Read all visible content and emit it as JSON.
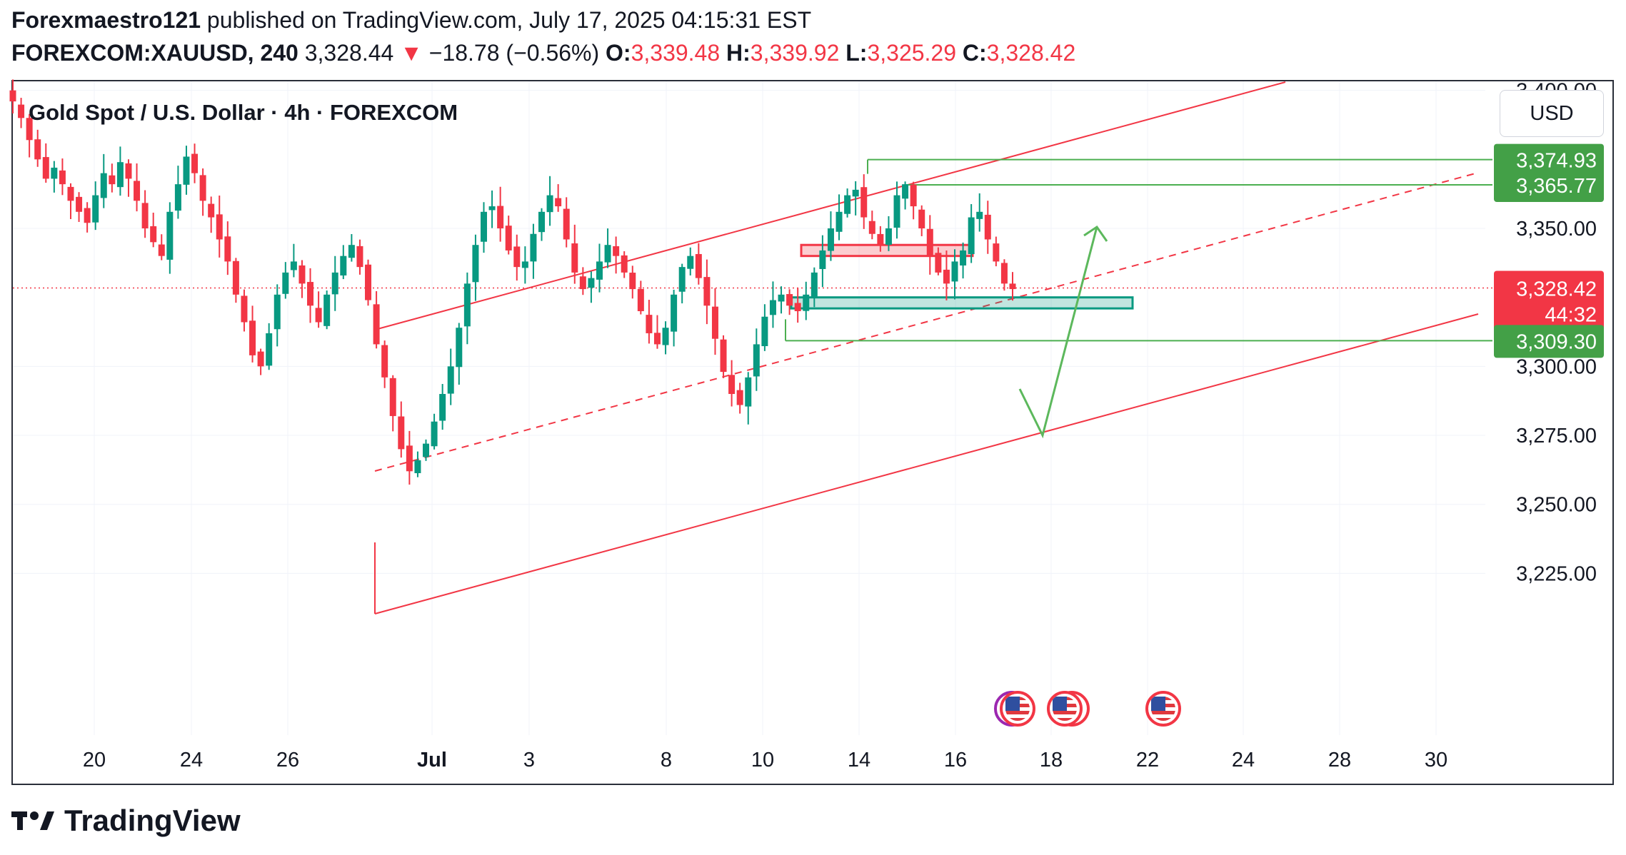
{
  "header": {
    "author": "Forexmaestro121",
    "published_text": "published on TradingView.com, July 17, 2025 04:15:31 EST",
    "symbol": "FOREXCOM:XAUUSD, 240",
    "last": "3,328.44",
    "change_arrow": "▼",
    "change": "−18.78 (−0.56%)",
    "o_label": "O:",
    "o_value": "3,339.48",
    "h_label": "H:",
    "h_value": "3,339.92",
    "l_label": "L:",
    "l_value": "3,325.29",
    "c_label": "C:",
    "c_value": "3,328.42"
  },
  "chart_title": "Gold Spot / U.S. Dollar · 4h · FOREXCOM",
  "currency_button": "USD",
  "footer_brand": "TradingView",
  "colors": {
    "up": "#089981",
    "down": "#f23645",
    "channel": "#f23645",
    "levels": "#4caf50",
    "text": "#131722",
    "grid": "#f0f3fa"
  },
  "chart_data": {
    "type": "candlestick",
    "title": "Gold Spot / U.S. Dollar · 4h · FOREXCOM",
    "y_ticks": [
      "3,400.00",
      "3,350.00",
      "3,300.00",
      "3,275.00",
      "3,250.00",
      "3,225.00"
    ],
    "y_tick_values": [
      3400,
      3350,
      3300,
      3275,
      3250,
      3225
    ],
    "x_ticks": [
      "20",
      "24",
      "26",
      "Jul",
      "3",
      "8",
      "10",
      "14",
      "16",
      "18",
      "22",
      "24",
      "28",
      "30"
    ],
    "price_labels": [
      {
        "text": "3,374.93",
        "value": 3374.93,
        "kind": "level"
      },
      {
        "text": "3,365.77",
        "value": 3365.77,
        "kind": "level"
      },
      {
        "text": "3,328.42",
        "value": 3328.42,
        "kind": "last"
      },
      {
        "text": "44:32",
        "kind": "countdown"
      },
      {
        "text": "3,309.30",
        "value": 3309.3,
        "kind": "level"
      }
    ],
    "candles_close_path": [
      3396,
      3390,
      3382,
      3375,
      3368,
      3372,
      3366,
      3360,
      3356,
      3352,
      3362,
      3370,
      3366,
      3374,
      3368,
      3360,
      3350,
      3345,
      3340,
      3356,
      3366,
      3376,
      3370,
      3360,
      3354,
      3346,
      3338,
      3326,
      3316,
      3304,
      3300,
      3312,
      3326,
      3334,
      3338,
      3330,
      3322,
      3316,
      3326,
      3334,
      3340,
      3344,
      3336,
      3324,
      3308,
      3296,
      3282,
      3270,
      3262,
      3266,
      3272,
      3280,
      3290,
      3300,
      3314,
      3330,
      3344,
      3356,
      3358,
      3350,
      3342,
      3336,
      3338,
      3348,
      3356,
      3362,
      3358,
      3346,
      3334,
      3328,
      3332,
      3338,
      3344,
      3340,
      3334,
      3328,
      3320,
      3312,
      3308,
      3314,
      3326,
      3336,
      3340,
      3332,
      3322,
      3310,
      3298,
      3290,
      3286,
      3296,
      3308,
      3318,
      3324,
      3326,
      3322,
      3320,
      3326,
      3334,
      3342,
      3350,
      3356,
      3362,
      3364,
      3354,
      3348,
      3344,
      3350,
      3362,
      3366,
      3358,
      3350,
      3340,
      3334,
      3330,
      3338,
      3342,
      3354,
      3356,
      3346,
      3338,
      3330,
      3328
    ],
    "levels": [
      3374.93,
      3365.77,
      3309.3
    ],
    "zones": [
      {
        "name": "resistance-zone",
        "from": 3340,
        "to": 3344
      },
      {
        "name": "support-zone",
        "from": 3321,
        "to": 3325
      }
    ]
  }
}
